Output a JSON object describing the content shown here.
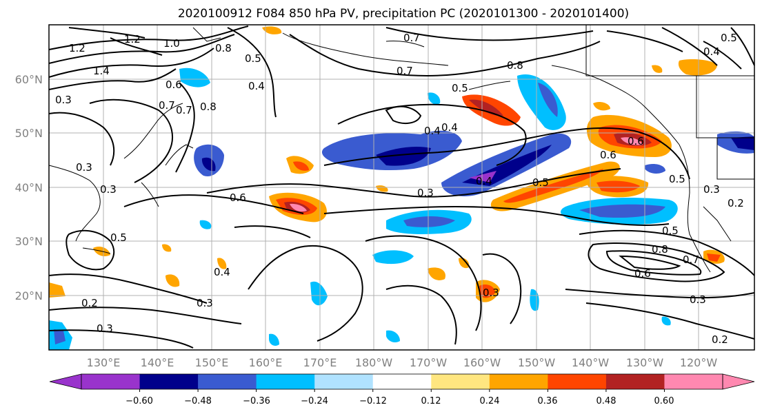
{
  "title": "2020100912 F084 850 hPa PV, precipitation PC (2020101300 - 2020101400)",
  "lat_labels": [
    "60°N",
    "50°N",
    "40°N",
    "30°N",
    "20°N"
  ],
  "lon_labels": [
    "130°E",
    "140°E",
    "150°E",
    "160°E",
    "170°E",
    "180°W",
    "170°W",
    "160°W",
    "150°W",
    "140°W",
    "130°W",
    "120°W"
  ],
  "colorbar": {
    "ticks": [
      "−0.60",
      "−0.48",
      "−0.36",
      "−0.24",
      "−0.12",
      "0.12",
      "0.24",
      "0.36",
      "0.48",
      "0.60"
    ],
    "colors": [
      "#9933cc",
      "#00008b",
      "#3a5bd0",
      "#00bfff",
      "#b0e2ff",
      "#ffffff",
      "#ffe680",
      "#ffa500",
      "#ff4500",
      "#b22222",
      "#ff88b0"
    ]
  },
  "contour_labels": [
    "1.2",
    "1.4",
    "1.2",
    "1.0",
    "0.8",
    "0.7",
    "0.5",
    "0.7",
    "0.8",
    "0.7",
    "0.8",
    "0.5",
    "0.4",
    "0.6",
    "0.6",
    "0.5",
    "0.3",
    "0.4",
    "0.4",
    "0.3",
    "0.4",
    "0.3",
    "0.3",
    "0.6",
    "0.5",
    "0.4",
    "0.5",
    "0.8",
    "0.6",
    "0.7",
    "0.5",
    "0.3",
    "0.2",
    "0.3",
    "0.2",
    "0.6",
    "0.5",
    "0.3",
    "0.7",
    "0.4",
    "0.3",
    "0.2",
    "0.3"
  ]
}
